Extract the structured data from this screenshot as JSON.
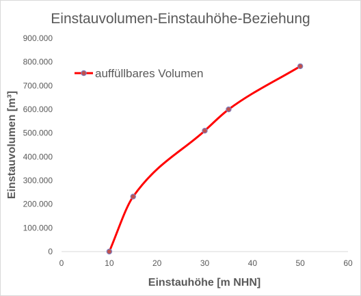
{
  "chart_data": {
    "type": "line",
    "title": "Einstauvolumen-Einstauhöhe-Beziehung",
    "xlabel": "Einstauhöhe  [m NHN]",
    "ylabel": "Einstauvolumen  [m³]",
    "xlim": [
      0,
      60
    ],
    "ylim": [
      0,
      900000
    ],
    "x_ticks": [
      0,
      10,
      20,
      30,
      40,
      50,
      60
    ],
    "x_tick_labels": [
      "0",
      "10",
      "20",
      "30",
      "40",
      "50",
      "60"
    ],
    "y_ticks": [
      0,
      100000,
      200000,
      300000,
      400000,
      500000,
      600000,
      700000,
      800000,
      900000
    ],
    "y_tick_labels": [
      "0",
      "100.000",
      "200.000",
      "300.000",
      "400.000",
      "500.000",
      "600.000",
      "700.000",
      "800.000",
      "900.000"
    ],
    "grid": false,
    "legend_position": "top-left",
    "series": [
      {
        "name": "auffüllbares Volumen",
        "color": "#ff0000",
        "marker_fill": "#c0504d",
        "marker_stroke": "#7f7fbf",
        "x": [
          10,
          15,
          30,
          35,
          50
        ],
        "y": [
          0,
          232000,
          510000,
          600000,
          782000
        ]
      }
    ]
  }
}
